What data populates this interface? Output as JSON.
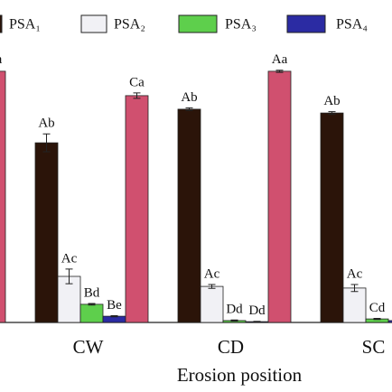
{
  "chart_data": {
    "type": "bar",
    "x_label": "Erosion position",
    "categories": [
      null,
      "CW",
      "CD",
      "SC"
    ],
    "ylim": [
      0,
      100
    ],
    "series": [
      {
        "name": "PSA₁",
        "color": "#2b1409",
        "values": [
          null,
          66.3,
          78.7,
          77.3
        ],
        "errors": [
          null,
          3.3,
          0.5,
          0.5
        ],
        "value_labels": [
          null,
          "Ab",
          "Ab",
          "Ab"
        ]
      },
      {
        "name": "PSA₂",
        "color": "#f1f1f5",
        "values": [
          null,
          17,
          13.3,
          12.7
        ],
        "errors": [
          null,
          2.7,
          0.7,
          1.3
        ],
        "value_labels": [
          null,
          "Ac",
          "Ac",
          "Ac"
        ]
      },
      {
        "name": "PSA₃",
        "color": "#5ecf4c",
        "values": [
          null,
          6.7,
          0.7,
          1.3
        ],
        "errors": [
          null,
          0.3,
          0.2,
          0.2
        ],
        "value_labels": [
          null,
          "Bd",
          "Dd",
          "Cd"
        ]
      },
      {
        "name": "PSA₄",
        "color": "#2b2ba3",
        "values": [
          null,
          2.3,
          0.3,
          0.7
        ],
        "errors": [
          null,
          0.2,
          0.1,
          0.1
        ],
        "value_labels": [
          null,
          "Be",
          "Dd",
          null
        ]
      },
      {
        "color": "#d0506f",
        "values": [
          92.7,
          83.7,
          92.7,
          null
        ],
        "errors": [
          0.4,
          1,
          0.4,
          null
        ],
        "value_labels": [
          "Aa",
          "Ca",
          "Aa",
          null
        ]
      }
    ]
  }
}
